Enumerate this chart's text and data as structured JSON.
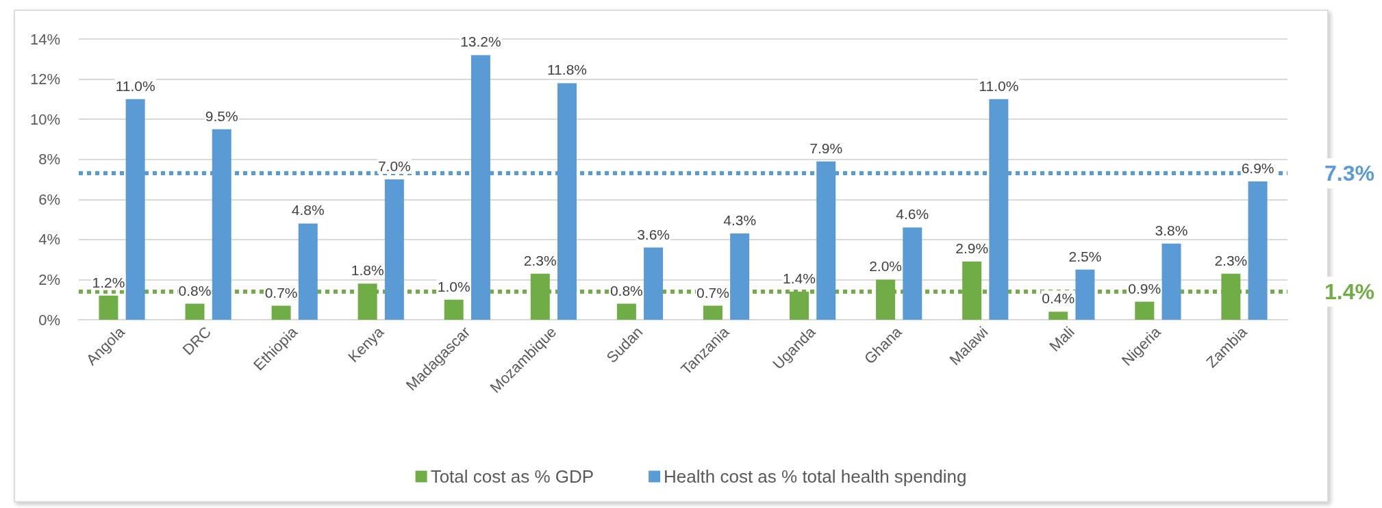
{
  "chart_data": {
    "type": "bar",
    "categories": [
      "Angola",
      "DRC",
      "Ethiopia",
      "Kenya",
      "Madagascar",
      "Mozambique",
      "Sudan",
      "Tanzania",
      "Uganda",
      "Ghana",
      "Malawi",
      "Mali",
      "Nigeria",
      "Zambia"
    ],
    "series": [
      {
        "name": "Total cost as % GDP",
        "color": "#70ad47",
        "values": [
          1.2,
          0.8,
          0.7,
          1.8,
          1.0,
          2.3,
          0.8,
          0.7,
          1.4,
          2.0,
          2.9,
          0.4,
          0.9,
          2.3
        ],
        "value_labels": [
          "1.2%",
          "0.8%",
          "0.7%",
          "1.8%",
          "1.0%",
          "2.3%",
          "0.8%",
          "0.7%",
          "1.4%",
          "2.0%",
          "2.9%",
          "0.4%",
          "0.9%",
          "2.3%"
        ]
      },
      {
        "name": "Health cost as % total health spending",
        "color": "#5b9bd5",
        "values": [
          11.0,
          9.5,
          4.8,
          7.0,
          13.2,
          11.8,
          3.6,
          4.3,
          7.9,
          4.6,
          11.0,
          2.5,
          3.8,
          6.9
        ],
        "value_labels": [
          "11.0%",
          "9.5%",
          "4.8%",
          "7.0%",
          "13.2%",
          "11.8%",
          "3.6%",
          "4.3%",
          "7.9%",
          "4.6%",
          "11.0%",
          "2.5%",
          "3.8%",
          "6.9%"
        ]
      }
    ],
    "ylim": [
      0,
      14
    ],
    "yticks": [
      {
        "value": 0,
        "label": "0%"
      },
      {
        "value": 2,
        "label": "2%"
      },
      {
        "value": 4,
        "label": "4%"
      },
      {
        "value": 6,
        "label": "6%"
      },
      {
        "value": 8,
        "label": "8%"
      },
      {
        "value": 10,
        "label": "10%"
      },
      {
        "value": 12,
        "label": "12%"
      },
      {
        "value": 14,
        "label": "14%"
      }
    ],
    "grid": "y",
    "legend": "bottom",
    "ref_lines": [
      {
        "axis": "y",
        "value": 7.3,
        "label": "7.3%",
        "color": "#5b9bd5",
        "line_style": "dotted"
      },
      {
        "axis": "y",
        "value": 1.4,
        "label": "1.4%",
        "color": "#70ad47",
        "line_style": "dotted"
      }
    ]
  }
}
